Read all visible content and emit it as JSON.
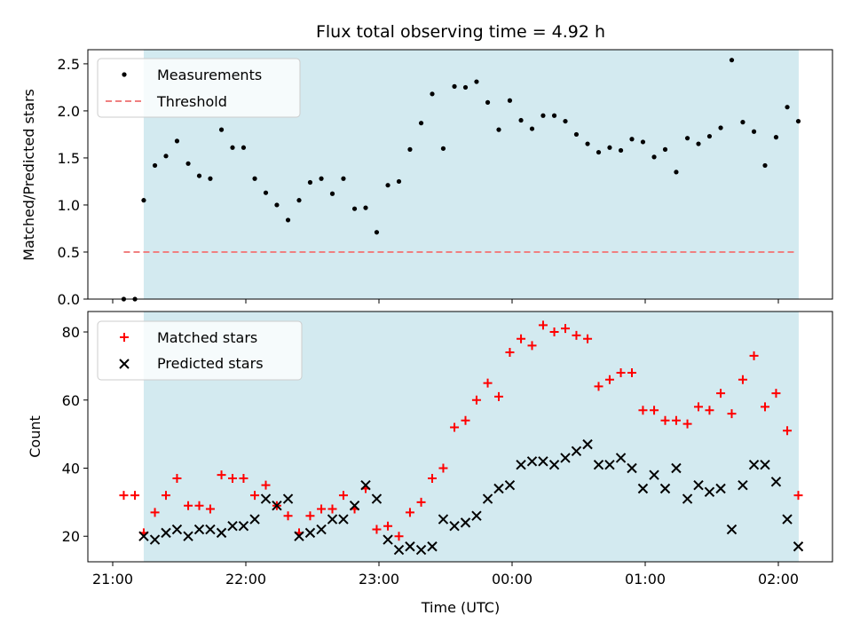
{
  "chart_data": [
    {
      "type": "scatter",
      "title": "Flux total observing time = 4.92 h",
      "xlabel": "",
      "ylabel": "Matched/Predicted stars",
      "ylim": [
        0,
        2.65
      ],
      "yticks": [
        "0.0",
        "0.5",
        "1.0",
        "1.5",
        "2.0",
        "2.5"
      ],
      "xlim": [
        20.9,
        2.4
      ],
      "shaded_region": [
        21.233,
        2.153
      ],
      "shade_color": "#d3eaf0",
      "legend": {
        "placement": "top-left",
        "entries": [
          "Measurements",
          "Threshold"
        ]
      },
      "threshold": {
        "name": "Threshold",
        "value": 0.5,
        "x_range": [
          21.083,
          2.133
        ],
        "color": "#f08080"
      },
      "series": [
        {
          "name": "Measurements",
          "color": "#000000",
          "x": [
            21.083,
            21.167,
            21.233,
            21.317,
            21.4,
            21.483,
            21.567,
            21.65,
            21.733,
            21.817,
            21.9,
            21.983,
            22.067,
            22.15,
            22.233,
            22.317,
            22.4,
            22.483,
            22.567,
            22.65,
            22.733,
            22.817,
            22.9,
            22.983,
            23.067,
            23.15,
            23.233,
            23.317,
            23.4,
            23.483,
            23.567,
            23.65,
            23.733,
            23.817,
            23.9,
            23.983,
            24.067,
            24.15,
            24.233,
            24.317,
            24.4,
            24.483,
            24.567,
            24.65,
            24.733,
            24.817,
            24.9,
            24.983,
            25.067,
            25.15,
            25.233,
            25.317,
            25.4,
            25.483,
            25.567,
            25.65,
            25.733,
            25.817,
            25.9,
            25.983,
            26.067,
            26.15
          ],
          "y": [
            0.0,
            0.0,
            1.05,
            1.42,
            1.52,
            1.68,
            1.44,
            1.31,
            1.28,
            1.8,
            1.61,
            1.61,
            1.28,
            1.13,
            1.0,
            0.84,
            1.05,
            1.24,
            1.28,
            1.12,
            1.28,
            0.96,
            0.97,
            0.71,
            1.21,
            1.25,
            1.59,
            1.87,
            2.18,
            1.6,
            2.26,
            2.25,
            2.31,
            2.09,
            1.8,
            2.11,
            1.9,
            1.81,
            1.95,
            1.95,
            1.89,
            1.75,
            1.65,
            1.56,
            1.61,
            1.58,
            1.7,
            1.67,
            1.51,
            1.59,
            1.35,
            1.71,
            1.65,
            1.73,
            1.82,
            2.54,
            1.88,
            1.78,
            1.42,
            1.72,
            2.04,
            1.89
          ]
        }
      ]
    },
    {
      "type": "scatter",
      "title": "",
      "xlabel": "Time (UTC)",
      "ylabel": "Count",
      "ylim": [
        12.5,
        86
      ],
      "yticks": [
        "20",
        "40",
        "60",
        "80"
      ],
      "xticks": [
        {
          "value": 21.0,
          "label": "21:00"
        },
        {
          "value": 22.0,
          "label": "22:00"
        },
        {
          "value": 23.0,
          "label": "23:00"
        },
        {
          "value": 24.0,
          "label": "00:00"
        },
        {
          "value": 25.0,
          "label": "01:00"
        },
        {
          "value": 26.0,
          "label": "02:00"
        }
      ],
      "shaded_region": [
        21.233,
        2.153
      ],
      "legend": {
        "placement": "top-left",
        "entries": [
          "Matched stars",
          "Predicted stars"
        ]
      },
      "series": [
        {
          "name": "Matched stars",
          "marker": "plus",
          "color": "#ff0000",
          "x": [
            21.083,
            21.167,
            21.233,
            21.317,
            21.4,
            21.483,
            21.567,
            21.65,
            21.733,
            21.817,
            21.9,
            21.983,
            22.067,
            22.15,
            22.233,
            22.317,
            22.4,
            22.483,
            22.567,
            22.65,
            22.733,
            22.817,
            22.9,
            22.983,
            23.067,
            23.15,
            23.233,
            23.317,
            23.4,
            23.483,
            23.567,
            23.65,
            23.733,
            23.817,
            23.9,
            23.983,
            24.067,
            24.15,
            24.233,
            24.317,
            24.4,
            24.483,
            24.567,
            24.65,
            24.733,
            24.817,
            24.9,
            24.983,
            25.067,
            25.15,
            25.233,
            25.317,
            25.4,
            25.483,
            25.567,
            25.65,
            25.733,
            25.817,
            25.9,
            25.983,
            26.067,
            26.15
          ],
          "y": [
            32,
            32,
            21,
            27,
            32,
            37,
            29,
            29,
            28,
            38,
            37,
            37,
            32,
            35,
            29,
            26,
            21,
            26,
            28,
            28,
            32,
            28,
            34,
            22,
            23,
            20,
            27,
            30,
            37,
            40,
            52,
            54,
            60,
            65,
            61,
            74,
            78,
            76,
            82,
            80,
            81,
            79,
            78,
            64,
            66,
            68,
            68,
            57,
            57,
            54,
            54,
            53,
            58,
            57,
            62,
            56,
            66,
            73,
            58,
            62,
            51,
            32
          ]
        },
        {
          "name": "Predicted stars",
          "marker": "x",
          "color": "#000000",
          "x": [
            21.233,
            21.317,
            21.4,
            21.483,
            21.567,
            21.65,
            21.733,
            21.817,
            21.9,
            21.983,
            22.067,
            22.15,
            22.233,
            22.317,
            22.4,
            22.483,
            22.567,
            22.65,
            22.733,
            22.817,
            22.9,
            22.983,
            23.067,
            23.15,
            23.233,
            23.317,
            23.4,
            23.483,
            23.567,
            23.65,
            23.733,
            23.817,
            23.9,
            23.983,
            24.067,
            24.15,
            24.233,
            24.317,
            24.4,
            24.483,
            24.567,
            24.65,
            24.733,
            24.817,
            24.9,
            24.983,
            25.067,
            25.15,
            25.233,
            25.317,
            25.4,
            25.483,
            25.567,
            25.65,
            25.733,
            25.817,
            25.9,
            25.983,
            26.067,
            26.15
          ],
          "y": [
            20,
            19,
            21,
            22,
            20,
            22,
            22,
            21,
            23,
            23,
            25,
            31,
            29,
            31,
            20,
            21,
            22,
            25,
            25,
            29,
            35,
            31,
            19,
            16,
            17,
            16,
            17,
            25,
            23,
            24,
            26,
            31,
            34,
            35,
            41,
            42,
            42,
            41,
            43,
            45,
            47,
            41,
            41,
            43,
            40,
            34,
            38,
            34,
            40,
            31,
            35,
            33,
            34,
            22,
            35,
            41,
            41,
            36,
            25,
            17
          ]
        }
      ]
    }
  ]
}
